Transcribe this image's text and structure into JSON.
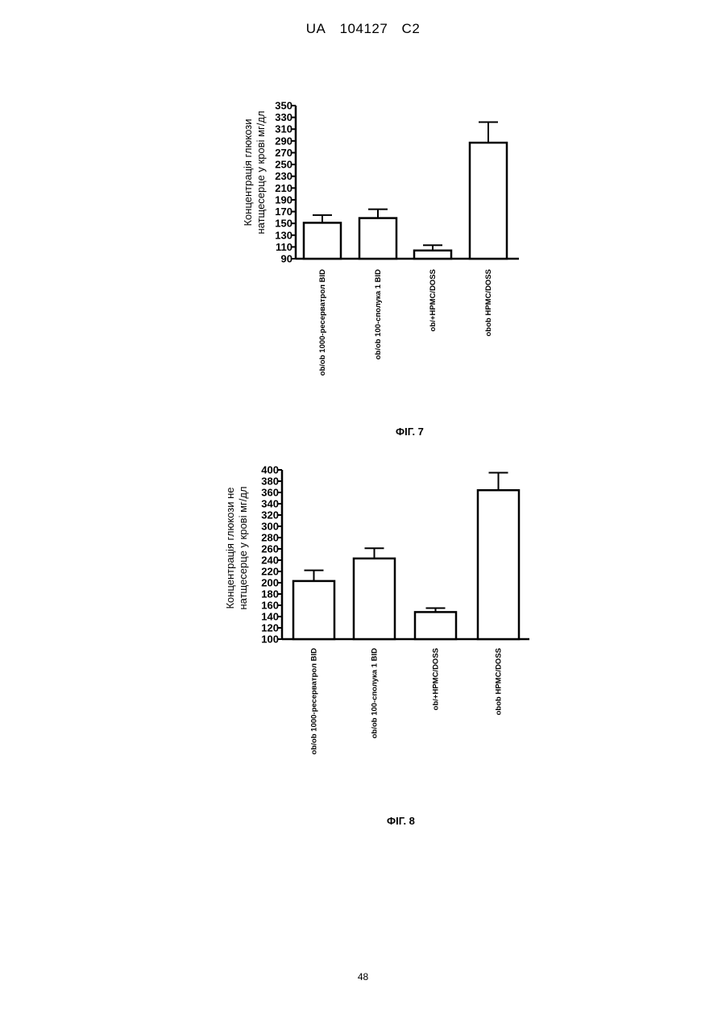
{
  "header": {
    "country": "UA",
    "number": "104127",
    "kind": "C2"
  },
  "page_number": "48",
  "chart_data": [
    {
      "type": "bar",
      "figure_label": "ФІГ. 7",
      "ylabel_lines": [
        "Концентрація глюкози",
        "натщесерце у крові мг/дл"
      ],
      "ylim": [
        90,
        350
      ],
      "yticks": [
        90,
        110,
        130,
        150,
        170,
        190,
        210,
        230,
        250,
        270,
        290,
        310,
        330,
        350
      ],
      "categories": [
        "ob/ob 1000-ресерватрол BID",
        "ob/ob 100-сполука 1 BID",
        "ob/+HPMC/DOSS",
        "obob HPMC/DOSS"
      ],
      "values": [
        151,
        159,
        104,
        287
      ],
      "errors": [
        13,
        15,
        9,
        35
      ],
      "grid": false
    },
    {
      "type": "bar",
      "figure_label": "ФІГ. 8",
      "ylabel_lines": [
        "Концентрація глюкози не",
        "натщесерце у крові мг/дл"
      ],
      "ylim": [
        100,
        400
      ],
      "yticks": [
        100,
        120,
        140,
        160,
        180,
        200,
        220,
        240,
        260,
        280,
        300,
        320,
        340,
        360,
        380,
        400
      ],
      "categories": [
        "ob/ob 1000-ресерватрол BID",
        "ob/ob 100-сполука 1 BID",
        "ob/+HPMC/DOSS",
        "obob HPMC/DOSS"
      ],
      "values": [
        203,
        243,
        148,
        364
      ],
      "errors": [
        19,
        18,
        7,
        31
      ],
      "grid": false
    }
  ]
}
